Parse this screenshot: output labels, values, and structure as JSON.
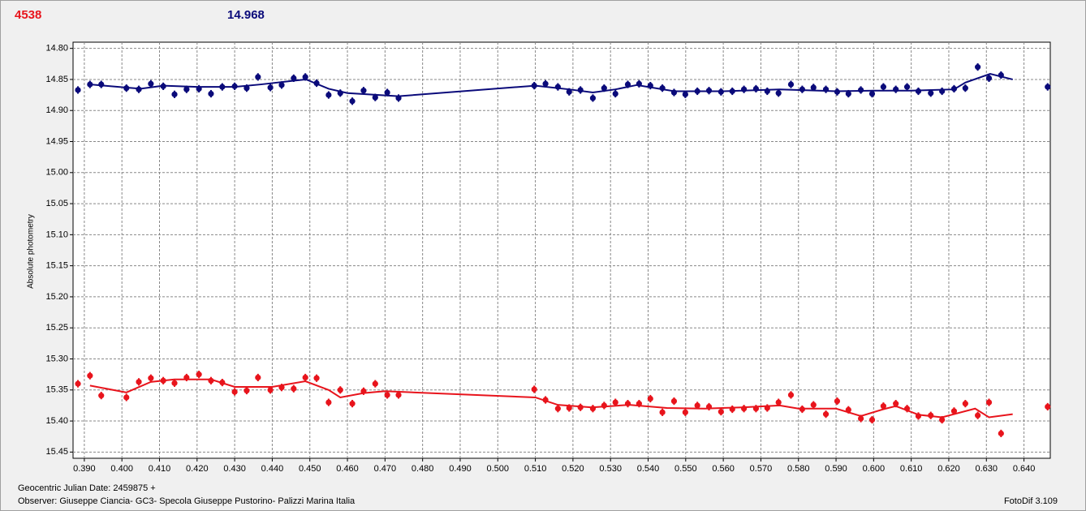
{
  "chart_data": {
    "type": "scatter",
    "header_left": "4538",
    "header_right": "14.968",
    "y_label": "Absolute photometry",
    "x_label": "Geocentric Julian Date: 2459875 +",
    "observer": "Observer: Giuseppe Ciancia- GC3- Specola Giuseppe Pustorino- Palizzi Marina Italia",
    "software": "FotoDif 3.109",
    "grid": true,
    "xlim": [
      0.387,
      0.647
    ],
    "ylim": [
      15.46,
      14.79
    ],
    "xticks": [
      {
        "value": 0.39,
        "label": "0.390"
      },
      {
        "value": 0.4,
        "label": "0.400"
      },
      {
        "value": 0.41,
        "label": "0.410"
      },
      {
        "value": 0.42,
        "label": "0.420"
      },
      {
        "value": 0.43,
        "label": "0.430"
      },
      {
        "value": 0.44,
        "label": "0.440"
      },
      {
        "value": 0.45,
        "label": "0.450"
      },
      {
        "value": 0.46,
        "label": "0.460"
      },
      {
        "value": 0.47,
        "label": "0.470"
      },
      {
        "value": 0.48,
        "label": "0.480"
      },
      {
        "value": 0.49,
        "label": "0.490"
      },
      {
        "value": 0.5,
        "label": "0.500"
      },
      {
        "value": 0.51,
        "label": "0.510"
      },
      {
        "value": 0.52,
        "label": "0.520"
      },
      {
        "value": 0.53,
        "label": "0.530"
      },
      {
        "value": 0.54,
        "label": "0.540"
      },
      {
        "value": 0.55,
        "label": "0.550"
      },
      {
        "value": 0.56,
        "label": "0.560"
      },
      {
        "value": 0.57,
        "label": "0.570"
      },
      {
        "value": 0.58,
        "label": "0.580"
      },
      {
        "value": 0.59,
        "label": "0.590"
      },
      {
        "value": 0.6,
        "label": "0.600"
      },
      {
        "value": 0.61,
        "label": "0.610"
      },
      {
        "value": 0.62,
        "label": "0.620"
      },
      {
        "value": 0.63,
        "label": "0.630"
      },
      {
        "value": 0.64,
        "label": "0.640"
      }
    ],
    "yticks": [
      {
        "value": 14.8,
        "label": "14.80"
      },
      14.85,
      {
        "value": 14.9,
        "label": "14.90"
      },
      14.95,
      {
        "value": 15.0,
        "label": "15.00"
      },
      15.05,
      {
        "value": 15.1,
        "label": "15.10"
      },
      15.15,
      {
        "value": 15.2,
        "label": "15.20"
      },
      15.25,
      {
        "value": 15.3,
        "label": "15.30"
      },
      15.35,
      {
        "value": 15.4,
        "label": "15.40"
      },
      15.45
    ],
    "x": [
      0.3883,
      0.3915,
      0.3945,
      0.4012,
      0.4045,
      0.4077,
      0.411,
      0.414,
      0.4172,
      0.4205,
      0.4237,
      0.4267,
      0.43,
      0.4332,
      0.4362,
      0.4395,
      0.4425,
      0.4457,
      0.4488,
      0.4518,
      0.455,
      0.4581,
      0.4613,
      0.4643,
      0.4674,
      0.4706,
      0.4736,
      0.5097,
      0.5127,
      0.516,
      0.519,
      0.522,
      0.5253,
      0.5283,
      0.5313,
      0.5346,
      0.5376,
      0.5406,
      0.5438,
      0.5469,
      0.5499,
      0.5531,
      0.5562,
      0.5594,
      0.5624,
      0.5655,
      0.5687,
      0.5717,
      0.5747,
      0.578,
      0.581,
      0.584,
      0.5873,
      0.5903,
      0.5933,
      0.5966,
      0.5996,
      0.6026,
      0.6059,
      0.6089,
      0.6119,
      0.6152,
      0.6182,
      0.6214,
      0.6244,
      0.6277,
      0.6307,
      0.6339,
      0.6463
    ],
    "series": [
      {
        "color": "#0a0a7a",
        "error": 0.006,
        "values": [
          14.867,
          14.858,
          14.858,
          14.864,
          14.866,
          14.857,
          14.861,
          14.874,
          14.866,
          14.865,
          14.873,
          14.862,
          14.861,
          14.864,
          14.846,
          14.863,
          14.859,
          14.848,
          14.846,
          14.856,
          14.875,
          14.872,
          14.885,
          14.868,
          14.879,
          14.871,
          14.88,
          14.86,
          14.857,
          14.862,
          14.87,
          14.867,
          14.88,
          14.864,
          14.873,
          14.858,
          14.857,
          14.86,
          14.864,
          14.871,
          14.874,
          14.869,
          14.868,
          14.87,
          14.869,
          14.866,
          14.865,
          14.869,
          14.872,
          14.858,
          14.866,
          14.863,
          14.866,
          14.87,
          14.873,
          14.867,
          14.873,
          14.862,
          14.866,
          14.862,
          14.869,
          14.872,
          14.869,
          14.865,
          14.864,
          14.83,
          14.848,
          14.843,
          14.862
        ],
        "fit": {
          "x": [
            0.3915,
            0.401,
            0.405,
            0.411,
            0.42,
            0.43,
            0.437,
            0.4457,
            0.449,
            0.455,
            0.46,
            0.4736,
            0.51,
            0.519,
            0.5253,
            0.5313,
            0.537,
            0.547,
            0.56,
            0.575,
            0.59,
            0.6,
            0.61,
            0.6214,
            0.6244,
            0.631,
            0.637
          ],
          "values": [
            14.858,
            14.863,
            14.865,
            14.86,
            14.862,
            14.862,
            14.858,
            14.852,
            14.85,
            14.865,
            14.872,
            14.877,
            14.86,
            14.866,
            14.871,
            14.866,
            14.859,
            14.869,
            14.869,
            14.866,
            14.869,
            14.868,
            14.868,
            14.866,
            14.855,
            14.841,
            14.85
          ]
        }
      },
      {
        "color": "#e8141c",
        "error": 0.006,
        "values": [
          15.34,
          15.327,
          15.359,
          15.362,
          15.337,
          15.331,
          15.335,
          15.339,
          15.33,
          15.325,
          15.335,
          15.338,
          15.353,
          15.351,
          15.33,
          15.35,
          15.346,
          15.348,
          15.33,
          15.331,
          15.37,
          15.35,
          15.372,
          15.352,
          15.34,
          15.358,
          15.358,
          15.349,
          15.366,
          15.38,
          15.379,
          15.378,
          15.38,
          15.375,
          15.37,
          15.372,
          15.372,
          15.364,
          15.386,
          15.368,
          15.386,
          15.375,
          15.377,
          15.385,
          15.381,
          15.38,
          15.38,
          15.379,
          15.37,
          15.358,
          15.381,
          15.374,
          15.389,
          15.368,
          15.382,
          15.396,
          15.398,
          15.376,
          15.372,
          15.38,
          15.392,
          15.391,
          15.398,
          15.384,
          15.372,
          15.391,
          15.37,
          15.42,
          15.377
        ],
        "fit": {
          "x": [
            0.3915,
            0.4012,
            0.4077,
            0.414,
            0.4237,
            0.43,
            0.44,
            0.4488,
            0.455,
            0.4581,
            0.4643,
            0.47,
            0.51,
            0.516,
            0.525,
            0.535,
            0.545,
            0.555,
            0.565,
            0.575,
            0.58,
            0.59,
            0.5966,
            0.6026,
            0.6059,
            0.612,
            0.6182,
            0.627,
            0.6307,
            0.637
          ],
          "values": [
            15.343,
            15.354,
            15.337,
            15.333,
            15.333,
            15.345,
            15.345,
            15.336,
            15.35,
            15.362,
            15.355,
            15.352,
            15.362,
            15.374,
            15.378,
            15.374,
            15.379,
            15.38,
            15.378,
            15.375,
            15.38,
            15.38,
            15.392,
            15.381,
            15.376,
            15.39,
            15.394,
            15.38,
            15.394,
            15.389
          ]
        }
      }
    ]
  }
}
